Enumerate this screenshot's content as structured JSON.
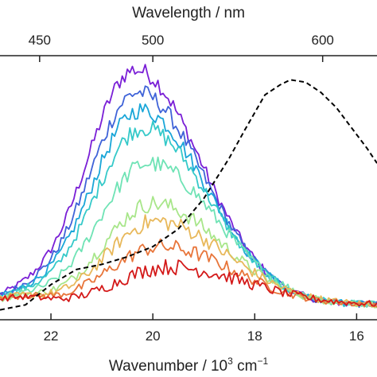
{
  "chart_data": {
    "type": "line",
    "title": "",
    "xlabel_bottom_prefix": "Wavenumber / 10",
    "xlabel_bottom_exp": "3",
    "xlabel_bottom_unit": " cm",
    "xlabel_bottom_unit_exp": "−1",
    "xlabel_top": "Wavelength / nm",
    "ylabel": "",
    "x_axis": {
      "min": 15.6,
      "max": 23.0,
      "reversed": true,
      "ticks": [
        22,
        20,
        18,
        16
      ],
      "tick_labels": [
        "22",
        "20",
        "18",
        "16"
      ]
    },
    "top_axis": {
      "ticks_nm": [
        450,
        500,
        600
      ],
      "tick_labels": [
        "450",
        "500",
        "600"
      ]
    },
    "y_axis": {
      "min": 0,
      "max": 1.0,
      "ticks_shown": false
    },
    "grid": false,
    "legend": "none",
    "series": [
      {
        "color": "#7a1fd6",
        "peak": 0.93,
        "center": 20.35,
        "width": 1.35,
        "sigmaLow": 0.95,
        "sigmaHigh": 1.3,
        "noise": 0.022
      },
      {
        "color": "#3f63d8",
        "peak": 0.84,
        "center": 20.3,
        "width": 1.35,
        "sigmaLow": 0.95,
        "sigmaHigh": 1.3,
        "noise": 0.022
      },
      {
        "color": "#1aa6d8",
        "peak": 0.77,
        "center": 20.25,
        "width": 1.35,
        "sigmaLow": 0.95,
        "sigmaHigh": 1.3,
        "noise": 0.022
      },
      {
        "color": "#35c9c9",
        "peak": 0.7,
        "center": 20.2,
        "width": 1.35,
        "sigmaLow": 0.95,
        "sigmaHigh": 1.3,
        "noise": 0.022
      },
      {
        "color": "#6fe3b5",
        "peak": 0.56,
        "center": 20.1,
        "width": 1.35,
        "sigmaLow": 0.95,
        "sigmaHigh": 1.35,
        "noise": 0.022
      },
      {
        "color": "#a8e68a",
        "peak": 0.4,
        "center": 20.0,
        "width": 1.35,
        "sigmaLow": 0.95,
        "sigmaHigh": 1.35,
        "noise": 0.022
      },
      {
        "color": "#e8b85a",
        "peak": 0.33,
        "center": 19.95,
        "width": 1.35,
        "sigmaLow": 0.95,
        "sigmaHigh": 1.4,
        "noise": 0.022
      },
      {
        "color": "#e8753a",
        "peak": 0.23,
        "center": 19.85,
        "width": 1.35,
        "sigmaLow": 1.0,
        "sigmaHigh": 1.4,
        "noise": 0.02
      },
      {
        "color": "#d41a1a",
        "peak": 0.15,
        "center": 19.7,
        "width": 1.35,
        "sigmaLow": 1.0,
        "sigmaHigh": 1.5,
        "noise": 0.02
      }
    ],
    "dashed_series": {
      "color": "#000000",
      "x": [
        23.0,
        22.5,
        22.0,
        21.5,
        21.0,
        20.5,
        20.0,
        19.5,
        19.0,
        18.5,
        18.2,
        18.0,
        17.8,
        17.5,
        17.3,
        17.0,
        16.7,
        16.4,
        16.1,
        15.8,
        15.6
      ],
      "y": [
        0.02,
        0.04,
        0.12,
        0.18,
        0.2,
        0.23,
        0.27,
        0.34,
        0.46,
        0.62,
        0.73,
        0.8,
        0.87,
        0.91,
        0.93,
        0.92,
        0.88,
        0.82,
        0.74,
        0.66,
        0.6
      ]
    }
  }
}
